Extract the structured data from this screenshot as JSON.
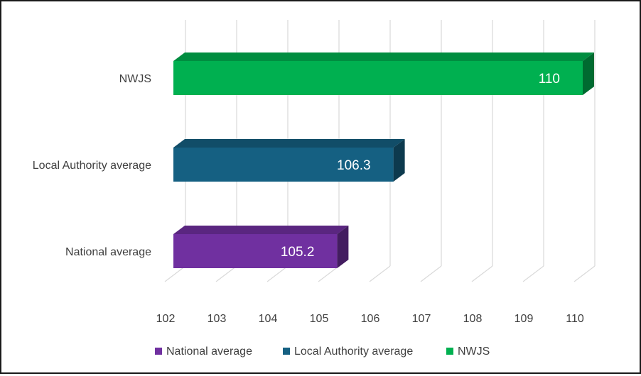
{
  "chart_data": {
    "type": "bar",
    "orientation": "horizontal",
    "three_d": true,
    "categories": [
      "National average",
      "Local Authority average",
      "NWJS"
    ],
    "values": [
      105.2,
      106.3,
      110
    ],
    "data_labels": [
      "105.2",
      "106.3",
      "110"
    ],
    "colors": [
      "#7030A0",
      "#156082",
      "#00B050"
    ],
    "xlim": [
      102,
      110
    ],
    "x_ticks": [
      102,
      103,
      104,
      105,
      106,
      107,
      108,
      109,
      110
    ],
    "x_tick_labels": [
      "102",
      "103",
      "104",
      "105",
      "106",
      "107",
      "108",
      "109",
      "110"
    ],
    "legend": {
      "position": "bottom",
      "entries": [
        "National average",
        "Local Authority average",
        "NWJS"
      ]
    },
    "grid": true
  }
}
